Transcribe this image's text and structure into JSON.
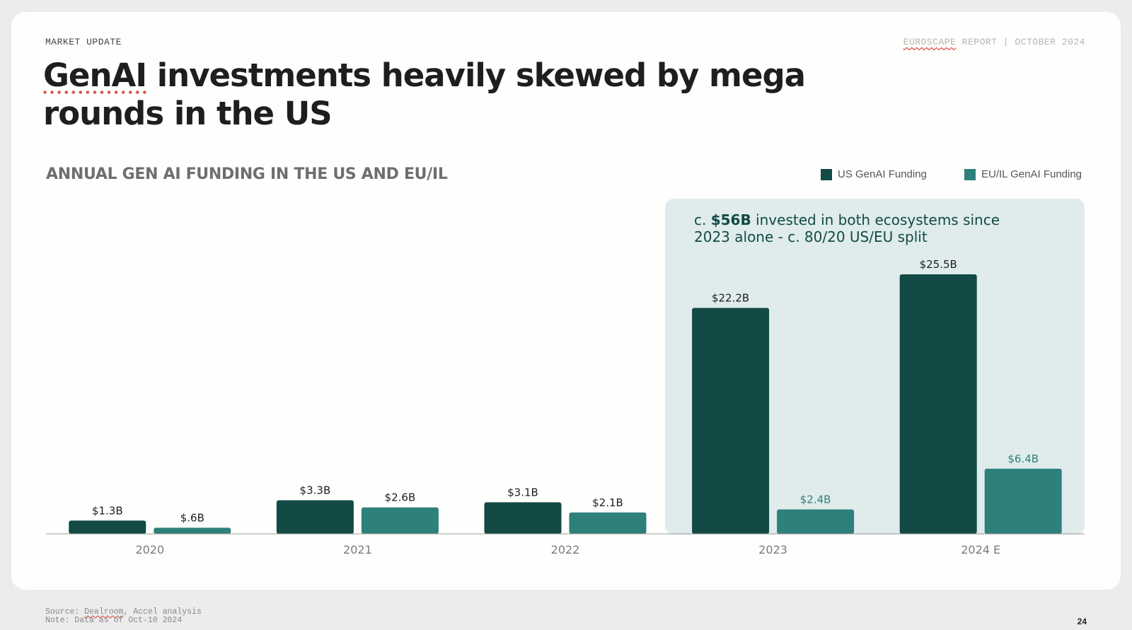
{
  "header": {
    "eyebrow": "MARKET UPDATE",
    "report_brand": "EUROSCAPE",
    "report_suffix": " REPORT | OCTOBER 2024",
    "headline_first_word": "GenAI",
    "headline_rest": " investments heavily skewed by mega rounds in the US"
  },
  "callout": {
    "prefix": "c. ",
    "highlight": "$56B",
    "suffix": " invested in both ecosystems since 2023 alone - c. 80/20 US/EU split"
  },
  "footer": {
    "source_prefix": "Source: ",
    "source_brand": "Dealroom",
    "source_suffix": ", Accel analysis",
    "note": "Note: Data as of Oct-10 2024",
    "page_number": "24"
  },
  "colors": {
    "us": "#134a45",
    "eu": "#2e807a",
    "highlight_panel": "#dfeceb",
    "axis_label": "#7a7a7a"
  },
  "chart_data": {
    "type": "bar",
    "title": "ANNUAL GEN AI FUNDING IN THE US AND EU/IL",
    "categories": [
      "2020",
      "2021",
      "2022",
      "2023",
      "2024 E"
    ],
    "series": [
      {
        "name": "US GenAI Funding",
        "values": [
          1.3,
          3.3,
          3.1,
          22.2,
          25.5
        ],
        "labels": [
          "$1.3B",
          "$3.3B",
          "$3.1B",
          "$22.2B",
          "$25.5B"
        ]
      },
      {
        "name": "EU/IL GenAI Funding",
        "values": [
          0.6,
          2.6,
          2.1,
          2.4,
          6.4
        ],
        "labels": [
          "$.6B",
          "$2.6B",
          "$2.1B",
          "$2.4B",
          "$6.4B"
        ]
      }
    ],
    "unit": "$B",
    "highlighted_categories": [
      "2023",
      "2024 E"
    ],
    "legend_position": "top-right",
    "grid": false,
    "ylim": [
      0,
      25.5
    ]
  }
}
